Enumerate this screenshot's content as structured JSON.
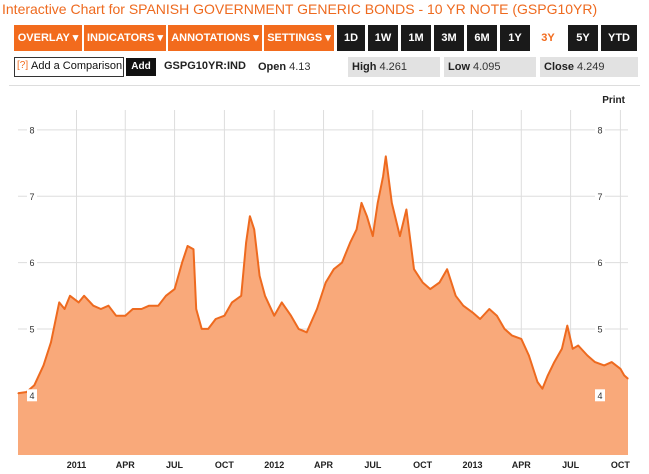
{
  "header": {
    "title": "Interactive Chart for SPANISH GOVERNMENT GENERIC BONDS - 10 YR NOTE (GSPG10YR)"
  },
  "toolbar": {
    "menus": [
      {
        "label": "OVERLAY ▾"
      },
      {
        "label": "INDICATORS ▾"
      },
      {
        "label": "ANNOTATIONS ▾"
      },
      {
        "label": "SETTINGS ▾"
      }
    ],
    "ranges": [
      "1D",
      "1W",
      "1M",
      "3M",
      "6M",
      "1Y",
      "3Y",
      "5Y",
      "YTD"
    ],
    "active_range": "3Y"
  },
  "info": {
    "compare_marker": "[?]",
    "compare_placeholder": "Add a Comparison",
    "add_label": "Add",
    "ticker": "GSPG10YR:IND",
    "open_label": "Open",
    "open_value": "4.13",
    "high_label": "High",
    "high_value": "4.261",
    "low_label": "Low",
    "low_value": "4.095",
    "close_label": "Close",
    "close_value": "4.249"
  },
  "print_label": "Print",
  "colors": {
    "accent": "#f26b1d",
    "line": "#ee6a1f",
    "area": "#f9a97a",
    "grid": "#dddddd"
  },
  "chart_data": {
    "type": "area",
    "yticks": [
      4,
      5,
      6,
      7,
      8
    ],
    "ylim": [
      3.1,
      8.3
    ],
    "xlim": [
      "2010-09-15",
      "2013-10-15"
    ],
    "xticks": [
      {
        "label": "2011",
        "date": "2011-01-01"
      },
      {
        "label": "APR",
        "date": "2011-04-01"
      },
      {
        "label": "JUL",
        "date": "2011-07-01"
      },
      {
        "label": "OCT",
        "date": "2011-10-01"
      },
      {
        "label": "2012",
        "date": "2012-01-01"
      },
      {
        "label": "APR",
        "date": "2012-04-01"
      },
      {
        "label": "JUL",
        "date": "2012-07-01"
      },
      {
        "label": "OCT",
        "date": "2012-10-01"
      },
      {
        "label": "2013",
        "date": "2013-01-01"
      },
      {
        "label": "APR",
        "date": "2013-04-01"
      },
      {
        "label": "JUL",
        "date": "2013-07-01"
      },
      {
        "label": "OCT",
        "date": "2013-10-01"
      }
    ],
    "points": [
      [
        "2010-09-15",
        4.03
      ],
      [
        "2010-10-01",
        4.05
      ],
      [
        "2010-10-15",
        4.15
      ],
      [
        "2010-11-01",
        4.45
      ],
      [
        "2010-11-15",
        4.8
      ],
      [
        "2010-11-30",
        5.4
      ],
      [
        "2010-12-10",
        5.3
      ],
      [
        "2010-12-20",
        5.5
      ],
      [
        "2011-01-05",
        5.4
      ],
      [
        "2011-01-15",
        5.5
      ],
      [
        "2011-02-01",
        5.35
      ],
      [
        "2011-02-15",
        5.3
      ],
      [
        "2011-03-01",
        5.35
      ],
      [
        "2011-03-15",
        5.2
      ],
      [
        "2011-04-01",
        5.2
      ],
      [
        "2011-04-15",
        5.3
      ],
      [
        "2011-05-01",
        5.3
      ],
      [
        "2011-05-15",
        5.35
      ],
      [
        "2011-06-01",
        5.35
      ],
      [
        "2011-06-15",
        5.5
      ],
      [
        "2011-07-01",
        5.6
      ],
      [
        "2011-07-15",
        6.0
      ],
      [
        "2011-07-25",
        6.25
      ],
      [
        "2011-08-05",
        6.2
      ],
      [
        "2011-08-10",
        5.3
      ],
      [
        "2011-08-20",
        5.0
      ],
      [
        "2011-09-01",
        5.0
      ],
      [
        "2011-09-15",
        5.15
      ],
      [
        "2011-10-01",
        5.2
      ],
      [
        "2011-10-15",
        5.4
      ],
      [
        "2011-11-01",
        5.5
      ],
      [
        "2011-11-10",
        6.3
      ],
      [
        "2011-11-17",
        6.7
      ],
      [
        "2011-11-25",
        6.5
      ],
      [
        "2011-12-05",
        5.8
      ],
      [
        "2011-12-15",
        5.5
      ],
      [
        "2012-01-01",
        5.2
      ],
      [
        "2012-01-15",
        5.4
      ],
      [
        "2012-02-01",
        5.2
      ],
      [
        "2012-02-15",
        5.0
      ],
      [
        "2012-03-01",
        4.95
      ],
      [
        "2012-03-20",
        5.3
      ],
      [
        "2012-04-05",
        5.7
      ],
      [
        "2012-04-20",
        5.9
      ],
      [
        "2012-05-05",
        6.0
      ],
      [
        "2012-05-20",
        6.3
      ],
      [
        "2012-06-01",
        6.5
      ],
      [
        "2012-06-10",
        6.9
      ],
      [
        "2012-06-20",
        6.7
      ],
      [
        "2012-07-01",
        6.4
      ],
      [
        "2012-07-10",
        6.9
      ],
      [
        "2012-07-20",
        7.3
      ],
      [
        "2012-07-25",
        7.6
      ],
      [
        "2012-08-05",
        6.9
      ],
      [
        "2012-08-20",
        6.4
      ],
      [
        "2012-09-01",
        6.8
      ],
      [
        "2012-09-15",
        5.9
      ],
      [
        "2012-10-01",
        5.7
      ],
      [
        "2012-10-15",
        5.6
      ],
      [
        "2012-11-01",
        5.7
      ],
      [
        "2012-11-15",
        5.9
      ],
      [
        "2012-12-01",
        5.5
      ],
      [
        "2012-12-15",
        5.35
      ],
      [
        "2013-01-01",
        5.25
      ],
      [
        "2013-01-15",
        5.15
      ],
      [
        "2013-02-01",
        5.3
      ],
      [
        "2013-02-15",
        5.2
      ],
      [
        "2013-03-01",
        5.0
      ],
      [
        "2013-03-15",
        4.9
      ],
      [
        "2013-04-01",
        4.85
      ],
      [
        "2013-04-15",
        4.6
      ],
      [
        "2013-05-01",
        4.2
      ],
      [
        "2013-05-10",
        4.1
      ],
      [
        "2013-05-20",
        4.3
      ],
      [
        "2013-06-01",
        4.5
      ],
      [
        "2013-06-15",
        4.7
      ],
      [
        "2013-06-25",
        5.05
      ],
      [
        "2013-07-05",
        4.7
      ],
      [
        "2013-07-15",
        4.75
      ],
      [
        "2013-08-01",
        4.6
      ],
      [
        "2013-08-15",
        4.5
      ],
      [
        "2013-09-01",
        4.45
      ],
      [
        "2013-09-15",
        4.5
      ],
      [
        "2013-10-01",
        4.4
      ],
      [
        "2013-10-08",
        4.3
      ],
      [
        "2013-10-15",
        4.25
      ]
    ]
  }
}
